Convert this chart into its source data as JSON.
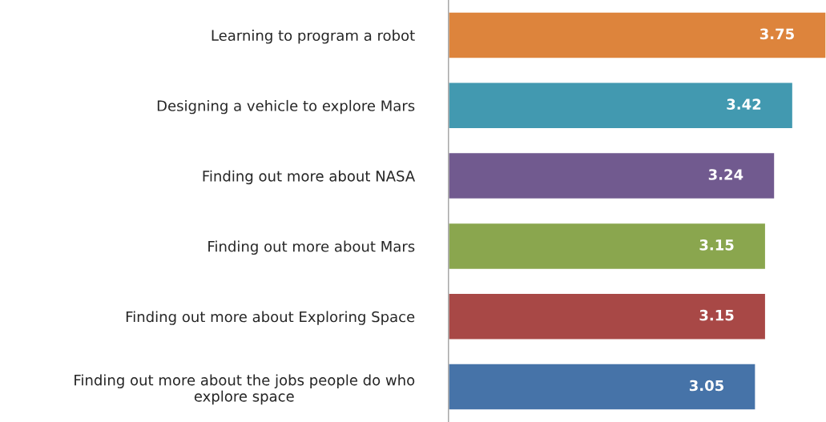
{
  "chart_data": {
    "type": "bar",
    "orientation": "horizontal",
    "categories": [
      "Learning to program a robot",
      "Designing a vehicle to explore Mars",
      "Finding out more about NASA",
      "Finding out more about Mars",
      "Finding out more about Exploring Space",
      "Finding out more about the jobs people do who\nexplore space"
    ],
    "values": [
      3.75,
      3.42,
      3.24,
      3.15,
      3.15,
      3.05
    ],
    "colors": [
      "#dd843c",
      "#4299b0",
      "#715a8f",
      "#8aa64e",
      "#a84846",
      "#4673a8"
    ],
    "data_labels": true,
    "grid": false
  }
}
